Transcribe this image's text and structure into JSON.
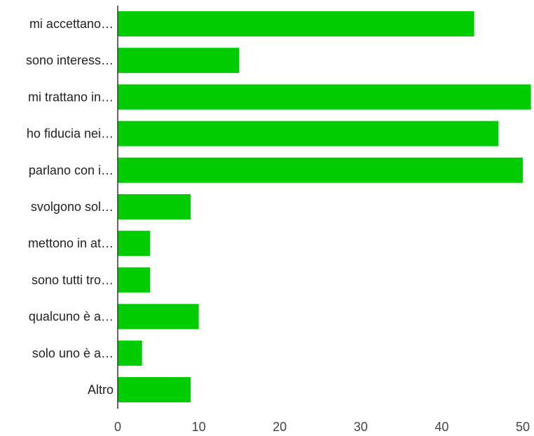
{
  "chart_data": {
    "type": "bar",
    "orientation": "horizontal",
    "title": "",
    "xlabel": "",
    "ylabel": "",
    "categories": [
      "mi accettano…",
      "sono interess…",
      "mi trattano in…",
      "ho fiducia nei…",
      "parlano con i…",
      "svolgono sol…",
      "mettono in at…",
      "sono tutti tro…",
      "qualcuno è a…",
      "solo uno è a…",
      "Altro"
    ],
    "values": [
      44,
      15,
      51,
      47,
      50,
      9,
      4,
      4,
      10,
      3,
      9
    ],
    "xlim": [
      0,
      51
    ],
    "xticks": [
      0,
      10,
      20,
      30,
      40,
      50
    ],
    "grid": false,
    "legend": "none",
    "bar_color": "#00cc00",
    "axis_color": "#333333"
  }
}
